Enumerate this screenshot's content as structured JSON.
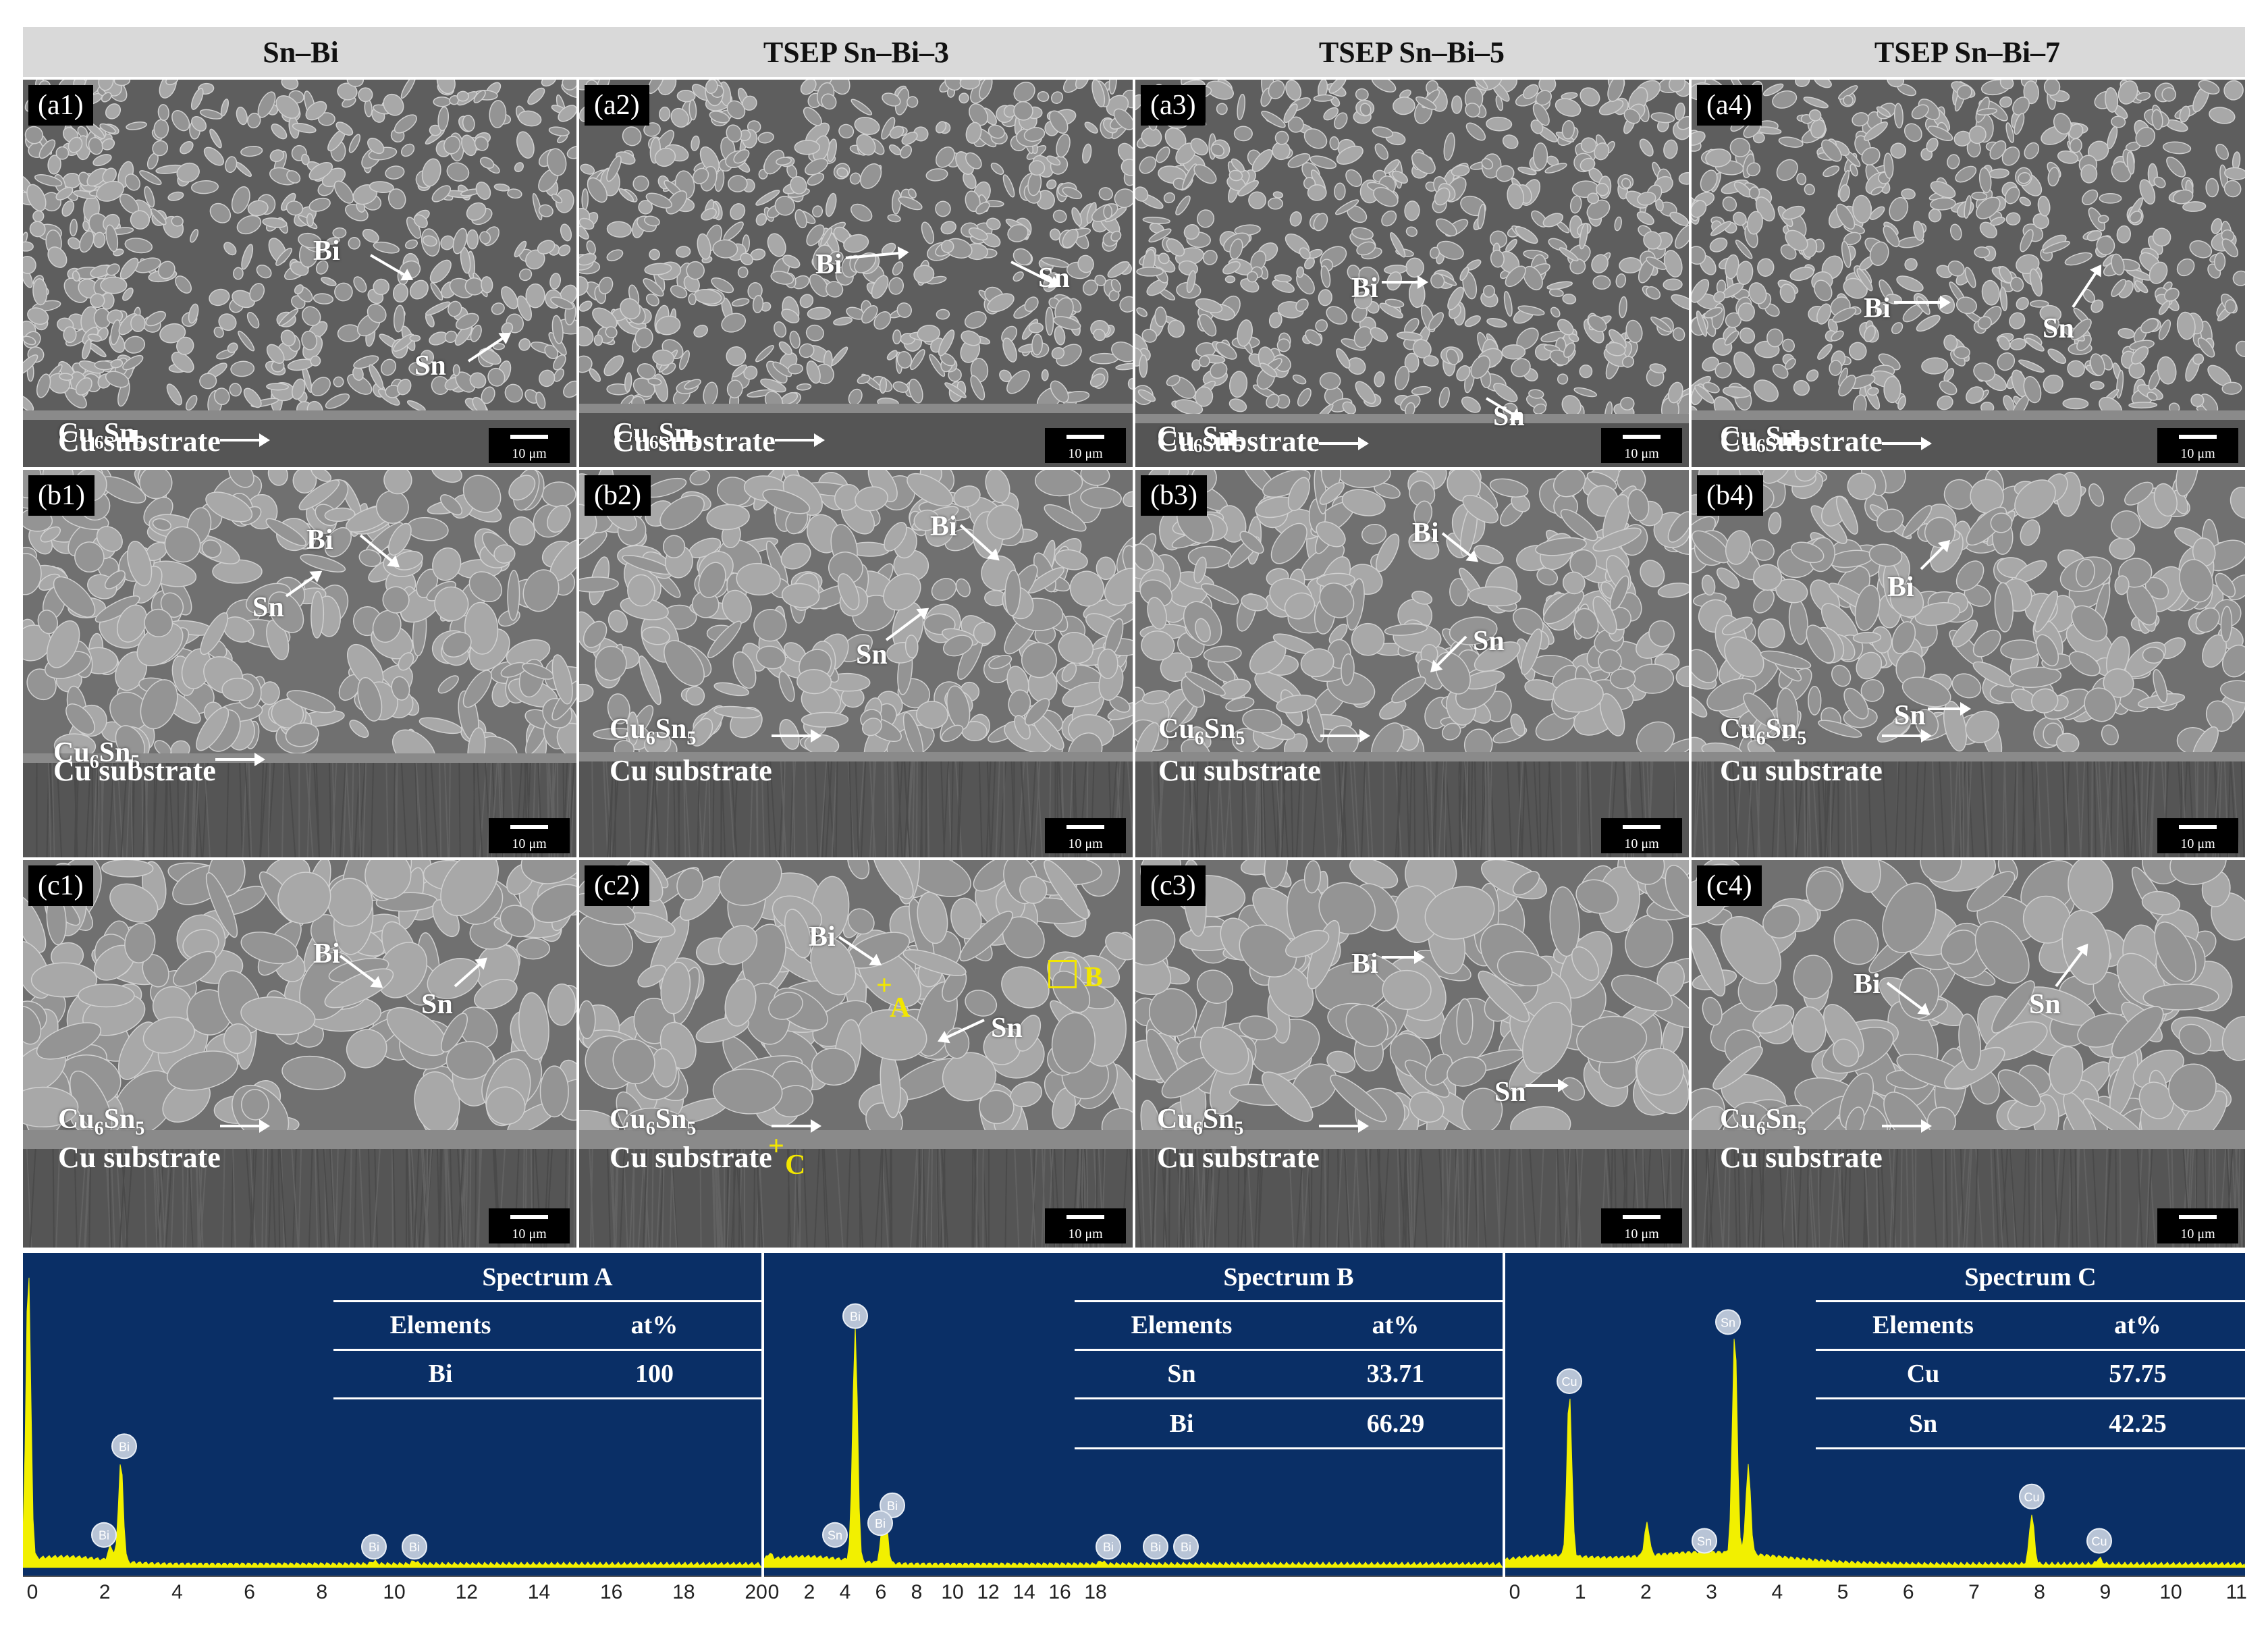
{
  "columns": [
    "Sn–Bi",
    "TSEP Sn–Bi–3",
    "TSEP Sn–Bi–5",
    "TSEP Sn–Bi–7"
  ],
  "rows": [
    {
      "panels": [
        {
          "label": "(a1)",
          "bi": "Bi",
          "sn": "Sn"
        },
        {
          "label": "(a2)",
          "bi": "Bi",
          "sn": "Sn"
        },
        {
          "label": "(a3)",
          "bi": "Bi",
          "sn": "Sn"
        },
        {
          "label": "(a4)",
          "bi": "Bi",
          "sn": "Sn"
        }
      ]
    },
    {
      "panels": [
        {
          "label": "(b1)",
          "bi": "Bi",
          "sn": "Sn"
        },
        {
          "label": "(b2)",
          "bi": "Bi",
          "sn": "Sn"
        },
        {
          "label": "(b3)",
          "bi": "Bi",
          "sn": "Sn"
        },
        {
          "label": "(b4)",
          "bi": "Bi",
          "sn": "Sn"
        }
      ]
    },
    {
      "panels": [
        {
          "label": "(c1)",
          "bi": "Bi",
          "sn": "Sn"
        },
        {
          "label": "(c2)",
          "bi": "Bi",
          "sn": "Sn"
        },
        {
          "label": "(c3)",
          "bi": "Bi",
          "sn": "Sn"
        },
        {
          "label": "(c4)",
          "bi": "Bi",
          "sn": "Sn"
        }
      ]
    }
  ],
  "imc": {
    "base": "Cu",
    "sub1": "6",
    "mid": "Sn",
    "sub2": "5"
  },
  "substrate": "Cu substrate",
  "scale_bar": "10 μm",
  "markers": {
    "a": "A",
    "b": "B",
    "c": "C"
  },
  "spectra": [
    {
      "title": "Spectrum A",
      "head": [
        "Elements",
        "at%"
      ],
      "rows": [
        [
          "Bi",
          "100"
        ]
      ],
      "ticks": [
        "0",
        "2",
        "4",
        "6",
        "8",
        "10",
        "12",
        "14",
        "16",
        "18",
        "20"
      ],
      "peak_labels": [
        "Bi",
        "Bi",
        "Bi",
        "Bi"
      ]
    },
    {
      "title": "Spectrum B",
      "head": [
        "Elements",
        "at%"
      ],
      "rows": [
        [
          "Sn",
          "33.71"
        ],
        [
          "Bi",
          "66.29"
        ]
      ],
      "ticks": [
        "0",
        "2",
        "4",
        "6",
        "8",
        "10",
        "12",
        "14",
        "16",
        "18"
      ],
      "peak_labels": [
        "Bi",
        "Sn",
        "Bi",
        "Bi",
        "Bi",
        "Bi",
        "Bi"
      ]
    },
    {
      "title": "Spectrum C",
      "head": [
        "Elements",
        "at%"
      ],
      "rows": [
        [
          "Cu",
          "57.75"
        ],
        [
          "Sn",
          "42.25"
        ]
      ],
      "ticks": [
        "0",
        "1",
        "2",
        "3",
        "4",
        "5",
        "6",
        "7",
        "8",
        "9",
        "10",
        "11"
      ],
      "peak_labels": [
        "Cu",
        "Sn",
        "Sn",
        "Cu",
        "Cu"
      ]
    }
  ],
  "colors": {
    "spectrum_bg": "#0a2f66",
    "peak": "#f2f000",
    "marker": "#f2e600",
    "header_bg": "#d9d9d9"
  }
}
